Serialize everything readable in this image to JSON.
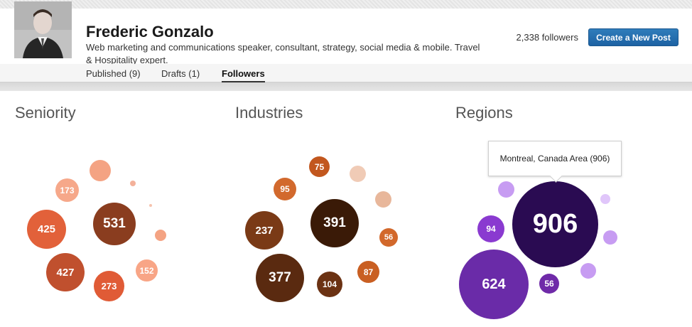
{
  "profile": {
    "name": "Frederic Gonzalo",
    "headline": "Web marketing and communications speaker, consultant, strategy, social media & mobile. Travel & Hospitality expert.",
    "followers_text": "2,338 followers",
    "create_post_label": "Create a New Post"
  },
  "tabs": [
    {
      "label": "Published (9)",
      "active": false
    },
    {
      "label": "Drafts (1)",
      "active": false
    },
    {
      "label": "Followers",
      "active": true
    }
  ],
  "sections": {
    "seniority": {
      "title": "Seniority"
    },
    "industries": {
      "title": "Industries"
    },
    "regions": {
      "title": "Regions"
    }
  },
  "tooltip": {
    "text": "Montreal, Canada Area (906)"
  },
  "chart_data": [
    {
      "type": "bubble",
      "title": "Seniority",
      "values": [
        531,
        425,
        427,
        273,
        173,
        152,
        null,
        null,
        null,
        null
      ],
      "colors": [
        "#8a3d1f",
        "#e2613a",
        "#c0502e",
        "#e05b36",
        "#f6a88a",
        "#f8a586",
        "#f4a383",
        "#f4a383",
        "#f3b19a",
        "#f6c3ae"
      ]
    },
    {
      "type": "bubble",
      "title": "Industries",
      "values": [
        391,
        377,
        237,
        104,
        95,
        87,
        75,
        56,
        null,
        null
      ],
      "colors": [
        "#3a1a07",
        "#5a2a10",
        "#7a3a16",
        "#6b3213",
        "#d2692d",
        "#c95f22",
        "#c2571e",
        "#d2682b",
        "#f0cbb6",
        "#e8b79b"
      ]
    },
    {
      "type": "bubble",
      "title": "Regions",
      "values": [
        906,
        624,
        94,
        56,
        null,
        null,
        null,
        null
      ],
      "colors": [
        "#2a0b52",
        "#6a2ba8",
        "#8a3ad0",
        "#6f2aa8",
        "#c79cf2",
        "#c79cf2",
        "#c79cf2",
        "#e0c6fa"
      ]
    }
  ]
}
